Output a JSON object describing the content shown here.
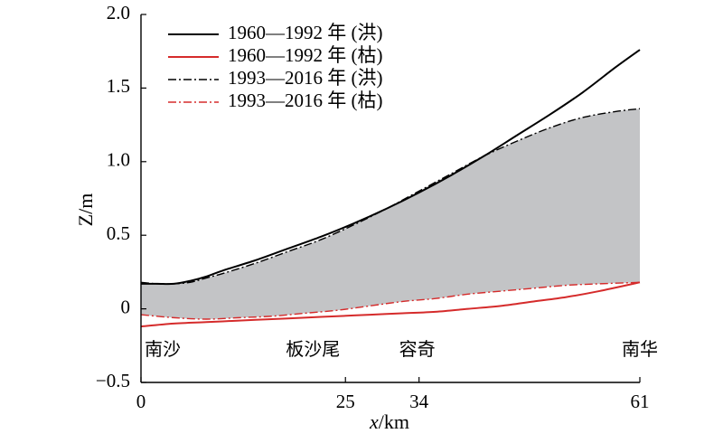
{
  "chart_data": {
    "type": "line",
    "xlabel_var": "x",
    "xlabel_unit": "/km",
    "ylabel": "Z/m",
    "xlim": [
      0,
      61
    ],
    "ylim": [
      -0.5,
      2.0
    ],
    "x_ticks": [
      0,
      25,
      34,
      61
    ],
    "x_tick_labels": [
      "0",
      "25",
      "34",
      "61"
    ],
    "y_ticks": [
      -0.5,
      0,
      0.5,
      1.0,
      1.5,
      2.0
    ],
    "y_tick_labels": [
      "−0.5",
      "0",
      "0.5",
      "1.0",
      "1.5",
      "2.0"
    ],
    "legend_position": "top-left",
    "grid": false,
    "place_labels": [
      {
        "text": "南沙",
        "x": 0
      },
      {
        "text": "板沙尾",
        "x": 25
      },
      {
        "text": "容奇",
        "x": 34
      },
      {
        "text": "南华",
        "x": 61
      }
    ],
    "series": [
      {
        "name": "1960—1992 年 (洪)",
        "color": "#000000",
        "dash": "solid",
        "x": [
          0,
          2,
          4,
          6,
          8,
          10,
          14,
          18,
          22,
          26,
          30,
          34,
          38,
          42,
          46,
          50,
          54,
          58,
          61
        ],
        "y": [
          0.17,
          0.17,
          0.17,
          0.19,
          0.22,
          0.26,
          0.33,
          0.41,
          0.49,
          0.58,
          0.68,
          0.79,
          0.91,
          1.04,
          1.18,
          1.32,
          1.47,
          1.64,
          1.76
        ]
      },
      {
        "name": "1960—1992 年 (枯)",
        "color": "#d52b2b",
        "dash": "solid",
        "x": [
          0,
          4,
          8,
          12,
          16,
          20,
          24,
          28,
          32,
          36,
          40,
          44,
          48,
          52,
          56,
          61
        ],
        "y": [
          -0.12,
          -0.1,
          -0.09,
          -0.08,
          -0.07,
          -0.06,
          -0.05,
          -0.04,
          -0.03,
          -0.02,
          0.0,
          0.02,
          0.05,
          0.08,
          0.12,
          0.18
        ]
      },
      {
        "name": "1993—2016 年 (洪)",
        "color": "#000000",
        "dash": "dashdot",
        "x": [
          0,
          2,
          4,
          6,
          8,
          10,
          14,
          18,
          22,
          26,
          30,
          34,
          38,
          42,
          46,
          50,
          54,
          58,
          61
        ],
        "y": [
          0.18,
          0.17,
          0.17,
          0.18,
          0.21,
          0.24,
          0.31,
          0.39,
          0.47,
          0.57,
          0.68,
          0.8,
          0.92,
          1.04,
          1.14,
          1.23,
          1.3,
          1.34,
          1.36
        ]
      },
      {
        "name": "1993—2016 年 (枯)",
        "color": "#d52b2b",
        "dash": "dashdot",
        "x": [
          0,
          4,
          8,
          12,
          16,
          20,
          24,
          28,
          32,
          36,
          40,
          44,
          48,
          52,
          56,
          61
        ],
        "y": [
          -0.04,
          -0.06,
          -0.07,
          -0.06,
          -0.05,
          -0.03,
          -0.01,
          0.02,
          0.05,
          0.07,
          0.1,
          0.12,
          0.14,
          0.16,
          0.17,
          0.18
        ]
      }
    ],
    "shaded_band": {
      "between": [
        "1993—2016 年 (枯)",
        "1993—2016 年 (洪)"
      ],
      "color": "#c3c4c6"
    }
  }
}
